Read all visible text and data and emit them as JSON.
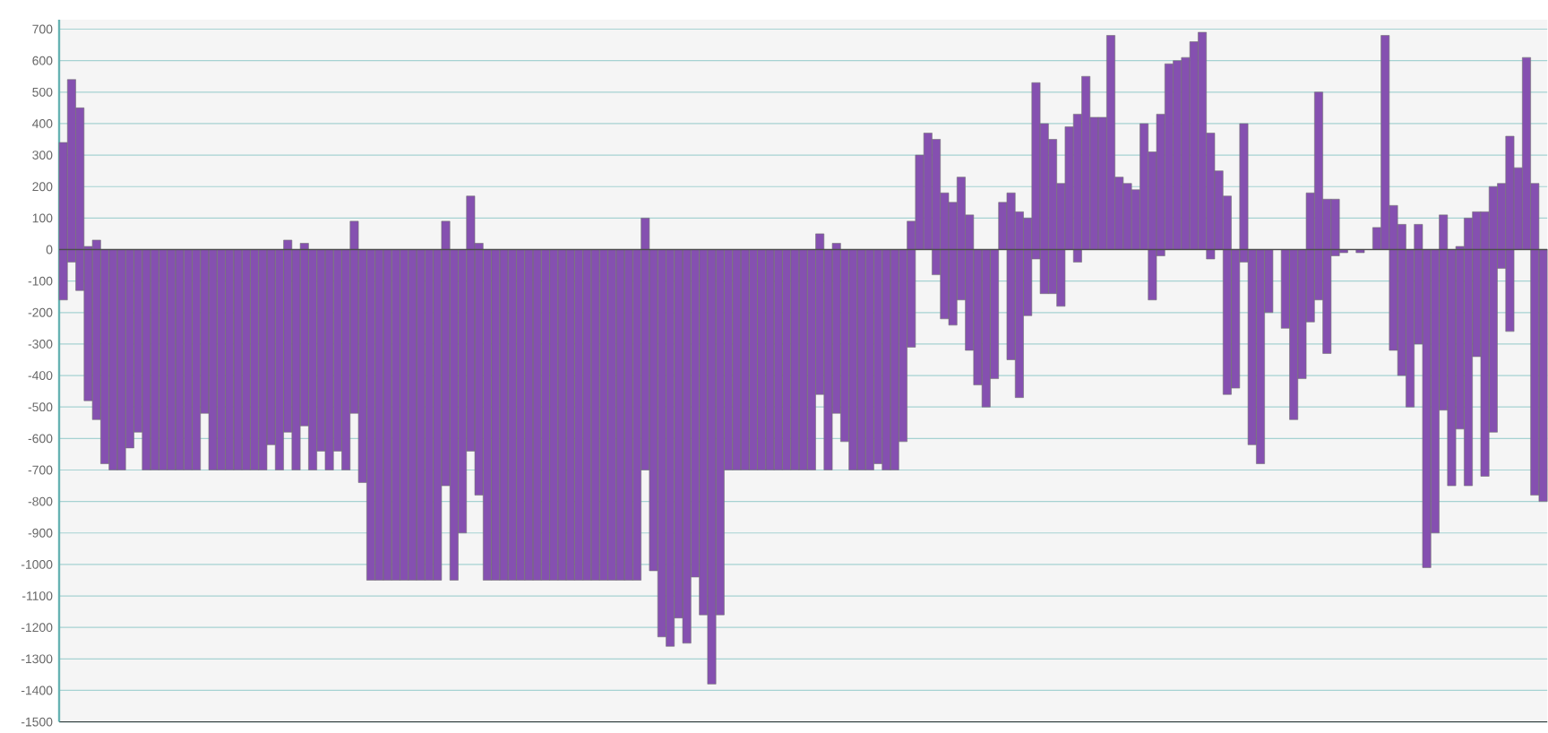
{
  "chart_data": {
    "type": "bar",
    "stacked": true,
    "grid": "y",
    "categories": [
      null,
      null,
      null,
      null,
      null,
      null,
      null,
      null,
      null,
      null,
      null,
      null,
      null,
      null,
      null,
      null,
      null,
      null,
      null,
      null,
      null,
      null,
      null,
      null,
      null,
      null,
      null,
      null,
      null,
      null,
      null,
      null,
      null,
      null,
      null,
      null,
      null,
      null,
      null,
      null,
      null,
      null,
      null,
      null,
      null,
      null,
      null,
      null,
      null,
      null,
      null,
      null,
      null,
      null,
      null,
      null,
      null,
      null,
      null,
      null,
      null,
      null,
      null,
      null,
      null,
      null,
      null,
      null,
      null,
      null,
      null,
      null,
      null,
      null,
      null,
      null,
      null,
      null,
      null,
      null,
      null,
      null,
      null,
      null,
      null,
      null,
      null,
      null,
      null,
      null,
      null,
      null,
      null,
      null,
      null,
      null,
      null,
      null,
      null,
      null,
      null,
      null,
      null,
      null,
      null,
      null,
      null,
      null,
      null,
      null,
      null,
      null,
      null,
      null,
      null,
      null,
      null,
      null,
      null,
      null,
      null,
      null,
      null,
      null,
      null,
      null,
      null,
      null,
      null,
      null,
      null,
      null,
      null,
      null,
      null,
      null,
      null,
      null,
      null,
      null,
      null,
      null,
      null,
      null,
      null,
      null,
      null,
      null,
      null,
      null,
      null,
      null,
      null,
      null,
      null,
      null,
      null,
      null,
      null,
      null,
      null,
      null,
      null,
      null,
      null,
      null,
      null,
      null,
      null,
      null,
      null,
      null,
      null,
      null,
      null,
      null,
      null,
      null,
      null
    ],
    "series": [
      {
        "color": "#8550b0",
        "values": [
          340,
          540,
          450,
          10,
          30,
          null,
          null,
          null,
          null,
          null,
          null,
          null,
          null,
          null,
          null,
          null,
          null,
          null,
          null,
          null,
          null,
          null,
          null,
          null,
          null,
          null,
          null,
          30,
          null,
          20,
          null,
          null,
          null,
          null,
          null,
          90,
          null,
          null,
          null,
          null,
          null,
          null,
          null,
          null,
          null,
          null,
          90,
          null,
          null,
          170,
          20,
          null,
          null,
          null,
          null,
          null,
          null,
          null,
          null,
          null,
          null,
          null,
          null,
          null,
          null,
          null,
          null,
          null,
          null,
          null,
          100,
          null,
          null,
          null,
          null,
          null,
          null,
          null,
          null,
          null,
          null,
          null,
          null,
          null,
          null,
          null,
          null,
          null,
          null,
          null,
          null,
          50,
          null,
          20,
          null,
          null,
          null,
          null,
          null,
          null,
          null,
          null,
          90,
          300,
          370,
          350,
          180,
          150,
          230,
          110,
          null,
          null,
          null,
          150,
          180,
          120,
          100,
          530,
          400,
          350,
          210,
          390,
          430,
          550,
          420,
          420,
          680,
          230,
          210,
          190,
          400,
          310,
          430,
          590,
          600,
          610,
          660,
          690,
          370,
          250,
          170,
          null,
          400,
          null,
          null,
          null,
          null,
          null,
          null,
          null,
          180,
          500,
          160,
          160,
          null,
          null,
          null,
          null,
          70,
          680,
          140,
          80,
          null,
          80,
          null,
          null,
          110,
          null,
          10,
          100,
          120,
          120,
          200,
          210,
          360,
          260,
          610,
          210,
          null
        ]
      },
      {
        "color": "#8550b0",
        "values": [
          -160,
          -40,
          -130,
          -480,
          -540,
          -680,
          -700,
          -700,
          -630,
          -580,
          -700,
          -700,
          -700,
          -700,
          -700,
          -700,
          -700,
          -520,
          -700,
          -700,
          -700,
          -700,
          -700,
          -700,
          -700,
          -620,
          -700,
          -580,
          -700,
          -560,
          -700,
          -640,
          -700,
          -640,
          -700,
          -520,
          -740,
          -1050,
          -1050,
          -1050,
          -1050,
          -1050,
          -1050,
          -1050,
          -1050,
          -1050,
          -750,
          -1050,
          -900,
          -640,
          -780,
          -1050,
          -1050,
          -1050,
          -1050,
          -1050,
          -1050,
          -1050,
          -1050,
          -1050,
          -1050,
          -1050,
          -1050,
          -1050,
          -1050,
          -1050,
          -1050,
          -1050,
          -1050,
          -1050,
          -700,
          -1020,
          -1230,
          -1260,
          -1170,
          -1250,
          -1040,
          -1160,
          -1380,
          -1160,
          -700,
          -700,
          -700,
          -700,
          -700,
          -700,
          -700,
          -700,
          -700,
          -700,
          -700,
          -460,
          -700,
          -520,
          -610,
          -700,
          -700,
          -700,
          -680,
          -700,
          -700,
          -610,
          -310,
          null,
          null,
          -80,
          -220,
          -240,
          -160,
          -320,
          -430,
          -500,
          -410,
          null,
          -350,
          -470,
          -210,
          -30,
          -140,
          -140,
          -180,
          null,
          -40,
          null,
          null,
          null,
          null,
          null,
          null,
          null,
          null,
          -160,
          -20,
          null,
          null,
          null,
          null,
          null,
          -30,
          null,
          -460,
          -440,
          -40,
          -620,
          -680,
          -200,
          null,
          -250,
          -540,
          -410,
          -230,
          -160,
          -330,
          -20,
          -10,
          null,
          -10,
          null,
          null,
          null,
          -320,
          -400,
          -500,
          -300,
          -1010,
          -900,
          -510,
          -750,
          -570,
          -750,
          -340,
          -720,
          -580,
          -60,
          -260,
          null,
          null,
          -780,
          -800
        ]
      }
    ],
    "ylim": [
      -1500,
      730
    ],
    "yticks": [
      -1500,
      -1400,
      -1300,
      -1200,
      -1100,
      -1000,
      -900,
      -800,
      -700,
      -600,
      -500,
      -400,
      -300,
      -200,
      -100,
      0,
      100,
      200,
      300,
      400,
      500,
      600,
      700
    ]
  }
}
